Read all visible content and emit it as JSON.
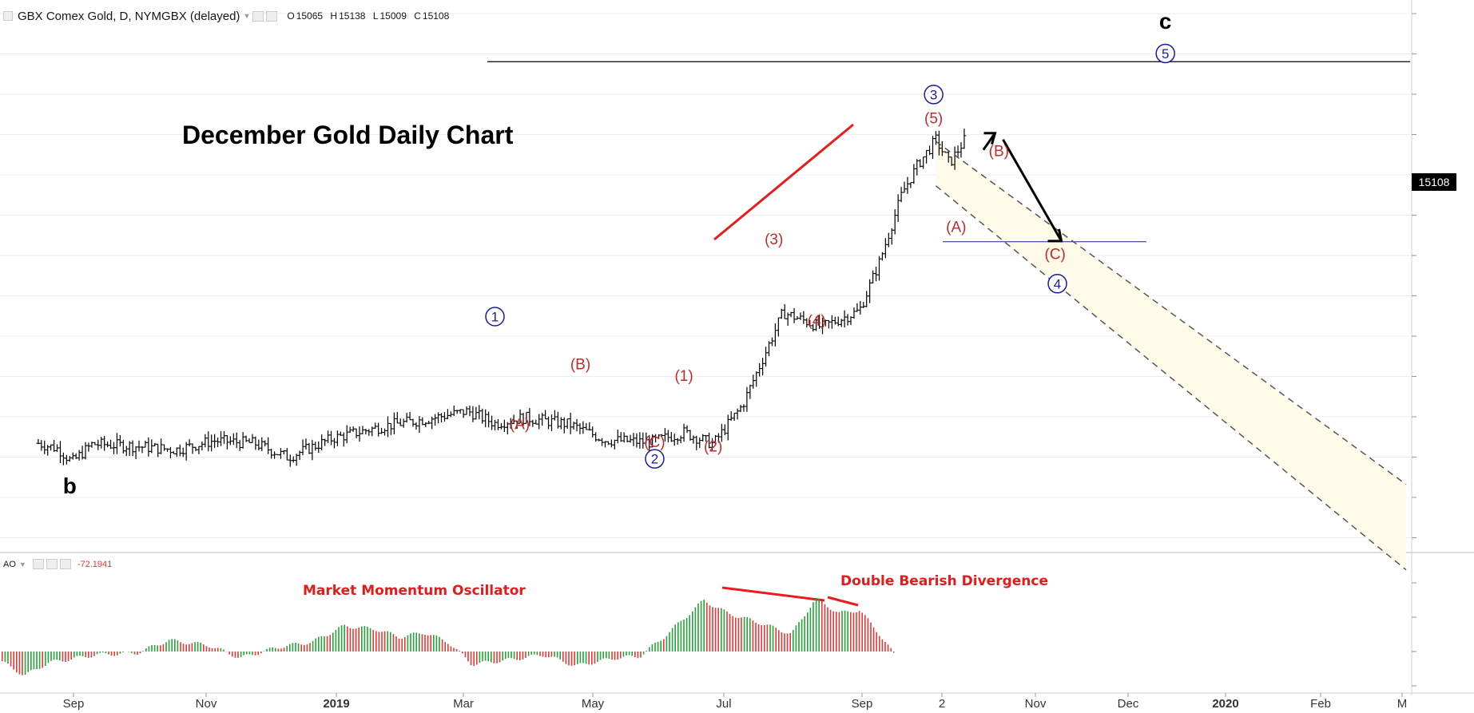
{
  "header": {
    "symbol": "GBX Comex Gold, D, NYMGBX (delayed)",
    "open_label": "O",
    "open": "15065",
    "high_label": "H",
    "high": "15138",
    "low_label": "L",
    "low": "15009",
    "close_label": "C",
    "close": "15108"
  },
  "price_tag": "15108",
  "oscillator": {
    "name": "AO",
    "value": "-72.1941"
  },
  "chart_data": {
    "type": "line",
    "title": "December Gold Daily Chart",
    "xlabel": "",
    "ylabel": "",
    "x_ticks": [
      "Sep",
      "Nov",
      "2019",
      "Mar",
      "May",
      "Jul",
      "Sep",
      "2",
      "Nov",
      "Dec",
      "2020",
      "Feb",
      "M"
    ],
    "grid": true,
    "series": [
      {
        "name": "",
        "x": [
          "2018-08-01",
          "2018-08-10",
          "2018-08-16",
          "2018-08-25",
          "2018-09-10",
          "2018-10-01",
          "2018-10-18",
          "2018-11-05",
          "2018-11-20",
          "2018-12-10",
          "2019-01-02",
          "2019-01-20",
          "2019-02-08",
          "2019-02-20",
          "2019-03-05",
          "2019-03-25",
          "2019-04-10",
          "2019-04-30",
          "2019-05-15",
          "2019-05-28",
          "2019-06-10",
          "2019-06-28",
          "2019-07-15",
          "2019-08-01",
          "2019-08-10",
          "2019-08-20",
          "2019-08-27",
          "2019-09-04",
          "2019-09-10",
          "2019-09-17"
        ],
        "values": [
          11410,
          11340,
          11180,
          11400,
          11380,
          11330,
          11440,
          11410,
          11240,
          11470,
          11620,
          11700,
          11800,
          11650,
          11720,
          11640,
          11450,
          11420,
          11540,
          11400,
          11870,
          13000,
          12820,
          13020,
          13620,
          14450,
          14800,
          15100,
          14810,
          15108
        ]
      }
    ],
    "projection": {
      "path": [
        {
          "x": "2019-09-18",
          "y": 14900
        },
        {
          "x": "2019-10-01",
          "y": 15220
        },
        {
          "x": "2019-10-28",
          "y": 13840
        }
      ],
      "channel_upper": [
        {
          "x": "2019-09-04",
          "y": 15080
        },
        {
          "x": "2020-03-31",
          "y": 10910
        }
      ],
      "channel_lower": [
        {
          "x": "2019-09-04",
          "y": 14540
        },
        {
          "x": "2020-03-31",
          "y": 9870
        }
      ],
      "level_c_line": 16050,
      "support_line": 13860
    },
    "wave_labels": {
      "major": [
        {
          "text": "b",
          "x": "2018-08-15",
          "y": 10800
        },
        {
          "text": "c",
          "x": "2019-12-15",
          "y": 16450
        }
      ],
      "circled": [
        {
          "text": "1",
          "x": "2019-02-20",
          "y": 12950
        },
        {
          "text": "2",
          "x": "2019-05-02",
          "y": 11220
        },
        {
          "text": "3",
          "x": "2019-09-03",
          "y": 15650
        },
        {
          "text": "4",
          "x": "2019-10-28",
          "y": 13350
        },
        {
          "text": "5",
          "x": "2019-12-15",
          "y": 16150
        }
      ],
      "red": [
        {
          "text": "(A)",
          "x": "2019-03-03",
          "y": 11580
        },
        {
          "text": "(B)",
          "x": "2019-03-30",
          "y": 12310
        },
        {
          "text": "(C)",
          "x": "2019-05-02",
          "y": 11360
        },
        {
          "text": "(1)",
          "x": "2019-05-15",
          "y": 12170
        },
        {
          "text": "(2)",
          "x": "2019-05-28",
          "y": 11310
        },
        {
          "text": "(3)",
          "x": "2019-06-24",
          "y": 13830
        },
        {
          "text": "(4)",
          "x": "2019-07-13",
          "y": 12840
        },
        {
          "text": "(5)",
          "x": "2019-09-03",
          "y": 15300
        },
        {
          "text": "(A)",
          "x": "2019-09-13",
          "y": 13980
        },
        {
          "text": "(B)",
          "x": "2019-10-02",
          "y": 14900
        },
        {
          "text": "(C)",
          "x": "2019-10-27",
          "y": 13650
        }
      ]
    },
    "oscillator_annotations": [
      "Market Momentum Oscillator",
      "Double Bearish Divergence"
    ]
  }
}
